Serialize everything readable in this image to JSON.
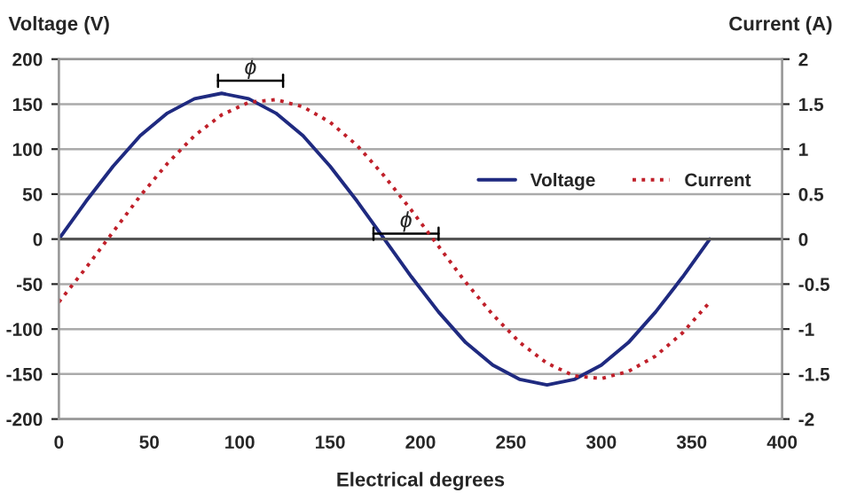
{
  "chart_data": {
    "type": "line",
    "xlabel": "Electrical degrees",
    "ylabel": "Voltage (V)",
    "y2label": "Current (A)",
    "x": [
      0,
      15,
      30,
      45,
      60,
      75,
      90,
      105,
      120,
      135,
      150,
      165,
      180,
      195,
      210,
      225,
      240,
      255,
      270,
      285,
      300,
      315,
      330,
      345,
      360
    ],
    "series": [
      {
        "name": "Voltage",
        "color": "#1f2a80",
        "line_style": "solid",
        "values": [
          0,
          42,
          81,
          115,
          140,
          156,
          162,
          156,
          140,
          115,
          81,
          42,
          0,
          -42,
          -81,
          -115,
          -140,
          -156,
          -162,
          -156,
          -140,
          -115,
          -81,
          -42,
          0
        ]
      },
      {
        "name": "Current",
        "color": "#c0202a",
        "line_style": "dotted",
        "axis": "y2",
        "values": [
          -0.7,
          -0.32,
          0.08,
          0.48,
          0.84,
          1.15,
          1.38,
          1.52,
          1.55,
          1.47,
          1.3,
          1.04,
          0.7,
          0.32,
          -0.08,
          -0.48,
          -0.84,
          -1.15,
          -1.38,
          -1.52,
          -1.55,
          -1.47,
          -1.3,
          -1.04,
          -0.7
        ]
      }
    ],
    "xlim": [
      0,
      400
    ],
    "xticks": [
      0,
      50,
      100,
      150,
      200,
      250,
      300,
      350,
      400
    ],
    "ylim": [
      -200,
      200
    ],
    "yticks": [
      -200,
      -150,
      -100,
      -50,
      0,
      50,
      100,
      150,
      200
    ],
    "y2lim": [
      -2,
      2
    ],
    "y2ticks": [
      -2,
      -1.5,
      -1,
      -0.5,
      0,
      0.5,
      1,
      1.5,
      2
    ],
    "annotations": [
      "ϕ",
      "ϕ"
    ],
    "grid": "y",
    "legend": "right",
    "marker": "none"
  }
}
